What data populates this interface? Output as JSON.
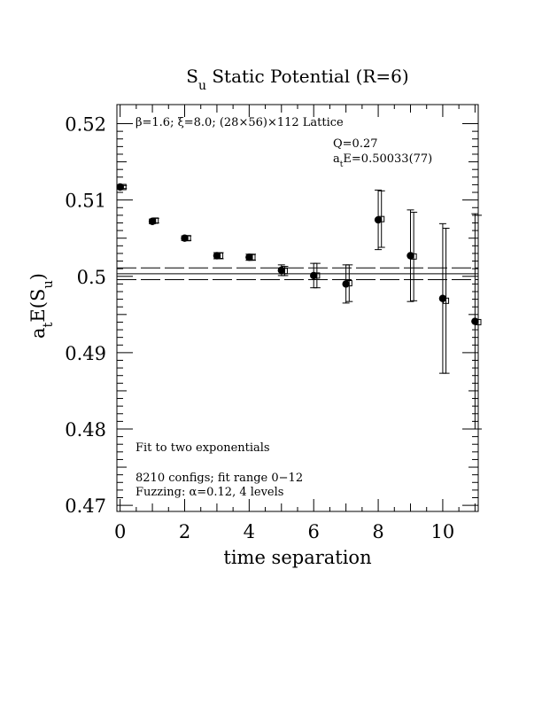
{
  "chart_data": {
    "type": "scatter",
    "title": "S_u Static Potential (R=6)",
    "xlabel": "time separation",
    "ylabel": "a_tE(S_u)",
    "xlim": [
      -0.1,
      11.1
    ],
    "ylim": [
      0.4692,
      0.5225
    ],
    "x_ticks": [
      0,
      2,
      4,
      6,
      8,
      10
    ],
    "x_tick_labels": [
      "0",
      "2",
      "4",
      "6",
      "8",
      "10"
    ],
    "y_ticks": [
      0.47,
      0.48,
      0.49,
      0.5,
      0.51,
      0.52
    ],
    "y_tick_labels": [
      "0.47",
      "0.48",
      "0.49",
      "0.5",
      "0.51",
      "0.52"
    ],
    "legend": "none",
    "grid": false,
    "series": [
      {
        "marker": "filled-circle",
        "x": [
          0,
          1,
          2,
          3,
          4,
          5,
          6,
          7,
          8,
          9,
          10,
          11
        ],
        "y": [
          0.5117,
          0.5072,
          0.505,
          0.5027,
          0.5025,
          0.5008,
          0.5001,
          0.499,
          0.5074,
          0.5027,
          0.4971,
          0.4941
        ],
        "err": [
          0.0002,
          0.0003,
          0.0003,
          0.0004,
          0.0004,
          0.0007,
          0.0016,
          0.0025,
          0.0039,
          0.006,
          0.0098,
          0.0141
        ]
      },
      {
        "marker": "open-square",
        "x": [
          0.1,
          1.1,
          2.1,
          3.1,
          4.1,
          5.1,
          6.1,
          7.1,
          8.1,
          9.1,
          10.1,
          11.1
        ],
        "y": [
          0.5117,
          0.5073,
          0.505,
          0.5027,
          0.5025,
          0.5007,
          0.5001,
          0.4991,
          0.5075,
          0.5026,
          0.4968,
          0.494
        ],
        "err": [
          0.0002,
          0.0003,
          0.0003,
          0.0004,
          0.0004,
          0.0006,
          0.0016,
          0.0024,
          0.0037,
          0.0058,
          0.0095,
          0.014
        ]
      }
    ],
    "fit": {
      "value": 0.50033,
      "error": 0.00077
    },
    "annotations": {
      "lattice": "β=1.6; ξ=8.0; (28×56)×112 Lattice",
      "q_value": "Q=0.27",
      "energy": "a_tE=0.50033(77)",
      "fit_desc": "Fit to two exponentials",
      "configs": "8210 configs; fit range 0−12",
      "fuzzing": "Fuzzing: α=0.12, 4 levels"
    }
  }
}
